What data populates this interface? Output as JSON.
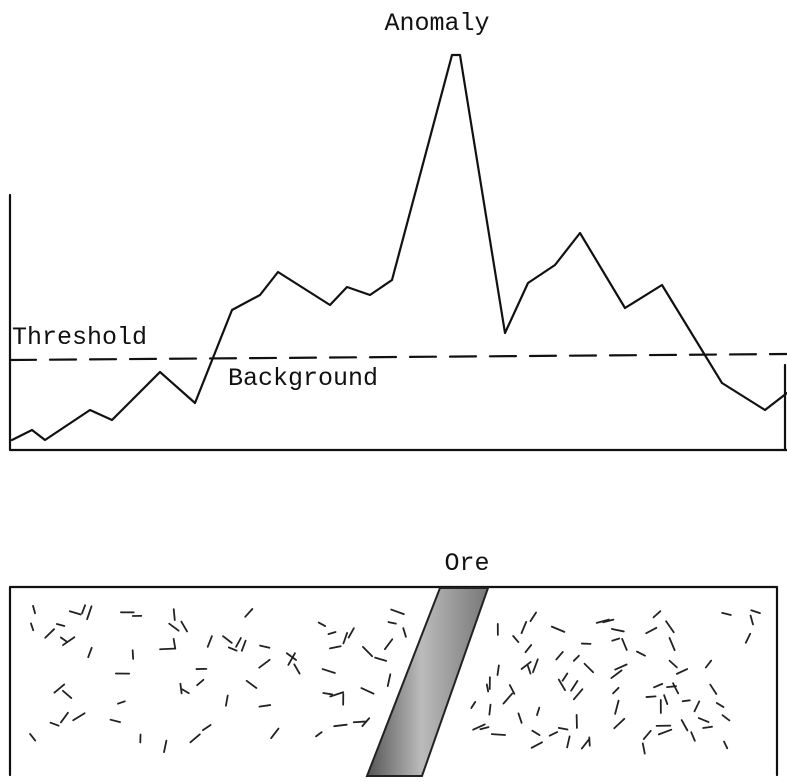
{
  "labels": {
    "anomaly": "Anomaly",
    "threshold": "Threshold",
    "background": "Background",
    "ore": "Ore"
  }
}
